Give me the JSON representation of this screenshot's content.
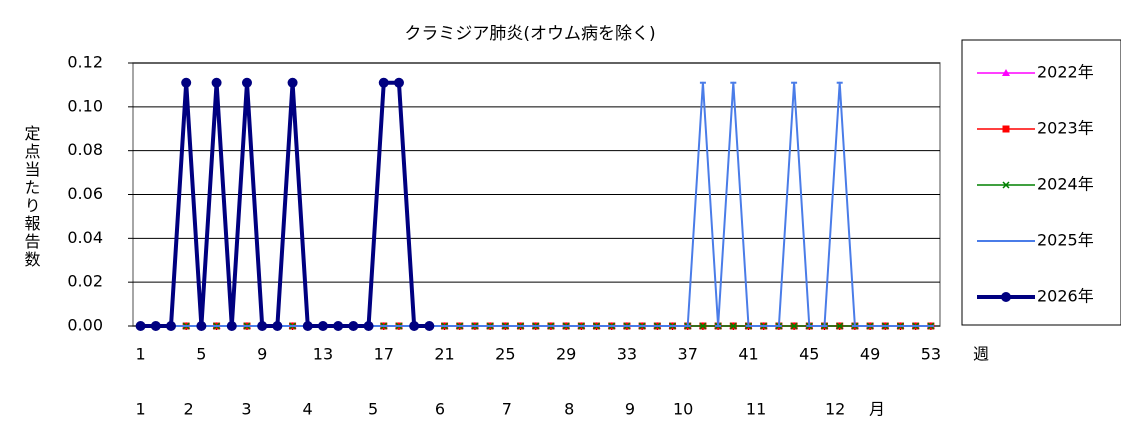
{
  "chart_data": {
    "type": "line",
    "title": "クラミジア肺炎(オウム病を除く)",
    "y_label": "定点当たり報告数",
    "x_unit": "週",
    "month_unit": "月",
    "x": [
      1,
      2,
      3,
      4,
      5,
      6,
      7,
      8,
      9,
      10,
      11,
      12,
      13,
      14,
      15,
      16,
      17,
      18,
      19,
      20,
      21,
      22,
      23,
      24,
      25,
      26,
      27,
      28,
      29,
      30,
      31,
      32,
      33,
      34,
      35,
      36,
      37,
      38,
      39,
      40,
      41,
      42,
      43,
      44,
      45,
      46,
      47,
      48,
      49,
      50,
      51,
      52,
      53
    ],
    "xlim": [
      0.5,
      53.6
    ],
    "xticks": [
      1,
      5,
      9,
      13,
      17,
      21,
      25,
      29,
      33,
      37,
      41,
      45,
      49,
      53
    ],
    "month_ticks": [
      {
        "value": 1,
        "label": "1"
      },
      {
        "value": 4.16,
        "label": "2"
      },
      {
        "value": 7.97,
        "label": "3"
      },
      {
        "value": 11.99,
        "label": "4"
      },
      {
        "value": 16.3,
        "label": "5"
      },
      {
        "value": 20.7,
        "label": "6"
      },
      {
        "value": 25.1,
        "label": "7"
      },
      {
        "value": 29.2,
        "label": "8"
      },
      {
        "value": 33.2,
        "label": "9"
      },
      {
        "value": 36.7,
        "label": "10"
      },
      {
        "value": 41.5,
        "label": "11"
      },
      {
        "value": 46.7,
        "label": "12"
      }
    ],
    "ylim": [
      0,
      0.12
    ],
    "yticks": [
      {
        "value": 0,
        "label": "0.00"
      },
      0.02,
      0.04,
      0.06,
      0.08,
      {
        "value": 0.1,
        "label": "0.10"
      },
      0.12
    ],
    "grid": true,
    "legend": "right",
    "series": [
      {
        "name": "2022年",
        "color": "#ff00ff",
        "marker": "triangle",
        "width": 1.5,
        "values": [
          0,
          0,
          0,
          0,
          0,
          0,
          0,
          0,
          0,
          0,
          0,
          0,
          0,
          0,
          0,
          0,
          0,
          0,
          0,
          0,
          0,
          0,
          0,
          0,
          0,
          0,
          0,
          0,
          0,
          0,
          0,
          0,
          0,
          0,
          0,
          0,
          0,
          0,
          0,
          0,
          0,
          0,
          0,
          0,
          0,
          0,
          0,
          0,
          0,
          0,
          0,
          0,
          0
        ]
      },
      {
        "name": "2023年",
        "color": "#ff0000",
        "marker": "square",
        "width": 1.5,
        "values": [
          0,
          0,
          0,
          0,
          0,
          0,
          0,
          0,
          0,
          0,
          0,
          0,
          0,
          0,
          0,
          0,
          0,
          0,
          0,
          0,
          0,
          0,
          0,
          0,
          0,
          0,
          0,
          0,
          0,
          0,
          0,
          0,
          0,
          0,
          0,
          0,
          0,
          0,
          0,
          0,
          0,
          0,
          0,
          0,
          0,
          0,
          0,
          0,
          0,
          0,
          0,
          0,
          0
        ]
      },
      {
        "name": "2024年",
        "color": "#008000",
        "marker": "cross",
        "width": 1.5,
        "values": [
          0,
          0,
          0,
          0,
          0,
          0,
          0,
          0,
          0,
          0,
          0,
          0,
          0,
          0,
          0,
          0,
          0,
          0,
          0,
          0,
          0,
          0,
          0,
          0,
          0,
          0,
          0,
          0,
          0,
          0,
          0,
          0,
          0,
          0,
          0,
          0,
          0,
          0,
          0,
          0,
          0,
          0,
          0,
          0,
          0,
          0,
          0,
          0,
          0,
          0,
          0,
          0,
          0
        ]
      },
      {
        "name": "2025年",
        "color": "#4a7ce8",
        "marker": "dash",
        "width": 2,
        "values": [
          0,
          0,
          0,
          0,
          0,
          0,
          0,
          0,
          0,
          0,
          0,
          0,
          0,
          0,
          0,
          0,
          0,
          0,
          0,
          0,
          0,
          0,
          0,
          0,
          0,
          0,
          0,
          0,
          0,
          0,
          0,
          0,
          0,
          0,
          0,
          0,
          0,
          0.111,
          0,
          0.111,
          0,
          0,
          0,
          0.111,
          0,
          0,
          0.111,
          0,
          0,
          0,
          0,
          0,
          0
        ]
      },
      {
        "name": "2026年",
        "color": "#000080",
        "marker": "circle",
        "width": 4,
        "values": [
          0,
          0,
          0,
          0.111,
          0,
          0.111,
          0,
          0.111,
          0,
          0,
          0.111,
          0,
          0,
          0,
          0,
          0,
          0.111,
          0.111,
          0,
          0,
          null,
          null,
          null,
          null,
          null,
          null,
          null,
          null,
          null,
          null,
          null,
          null,
          null,
          null,
          null,
          null,
          null,
          null,
          null,
          null,
          null,
          null,
          null,
          null,
          null,
          null,
          null,
          null,
          null,
          null,
          null,
          null,
          null
        ]
      }
    ]
  }
}
